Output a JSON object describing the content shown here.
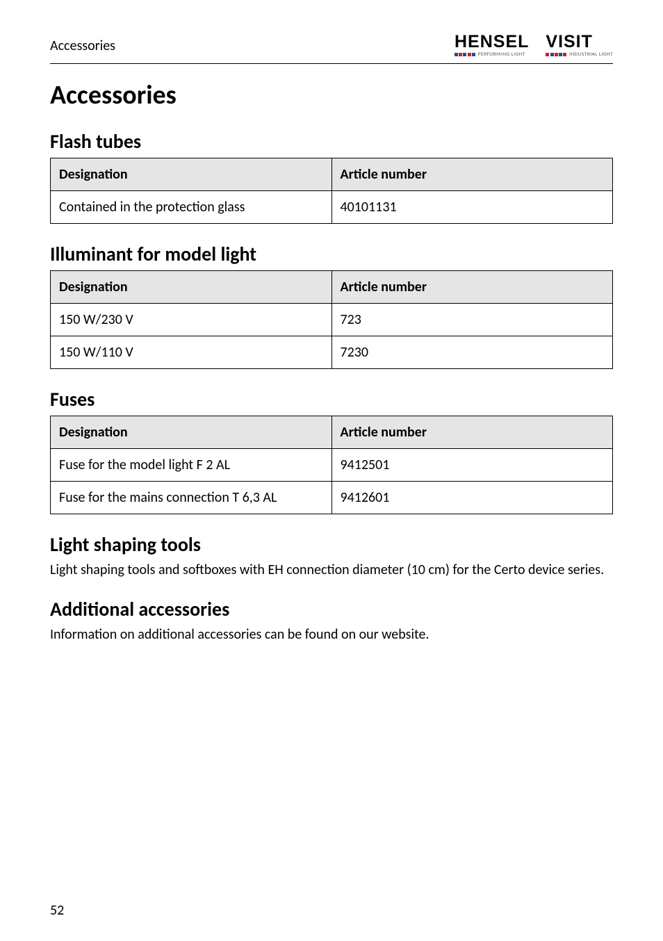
{
  "header": {
    "section": "Accessories",
    "logo1": {
      "main": "HENSEL",
      "sub": "PERFORMING LIGHT"
    },
    "logo2": {
      "main": "VISIT",
      "sub": "INDUSTRIAL LIGHT"
    }
  },
  "title": "Accessories",
  "sections": {
    "flash_tubes": {
      "heading": "Flash tubes",
      "col1": "Designation",
      "col2": "Article number",
      "rows": [
        {
          "c1": "Contained in the protection glass",
          "c2": "40101131"
        }
      ]
    },
    "illuminant": {
      "heading": "Illuminant for model light",
      "col1": "Designation",
      "col2": "Article number",
      "rows": [
        {
          "c1": "150 W/230 V",
          "c2": "723"
        },
        {
          "c1": "150 W/110 V",
          "c2": "7230"
        }
      ]
    },
    "fuses": {
      "heading": "Fuses",
      "col1": "Designation",
      "col2": "Article number",
      "rows": [
        {
          "c1": "Fuse for the model light F 2 AL",
          "c2": "9412501"
        },
        {
          "c1": "Fuse for the mains connection T 6,3 AL",
          "c2": "9412601"
        }
      ]
    },
    "light_shaping": {
      "heading": "Light shaping tools",
      "body": "Light shaping tools and softboxes with EH connection diameter (10 cm) for the Certo device series."
    },
    "additional": {
      "heading": "Additional accessories",
      "body": "Information on additional accessories can be found on our website."
    }
  },
  "page_number": "52",
  "colors": {
    "hensel_squares": [
      "#1a4ea0",
      "#d81b1f",
      "#1a4ea0",
      "#d81b1f",
      "#1a4ea0"
    ],
    "visit_squares": [
      "#d81b1f",
      "#1a4ea0",
      "#d81b1f",
      "#1a4ea0",
      "#d81b1f"
    ]
  }
}
